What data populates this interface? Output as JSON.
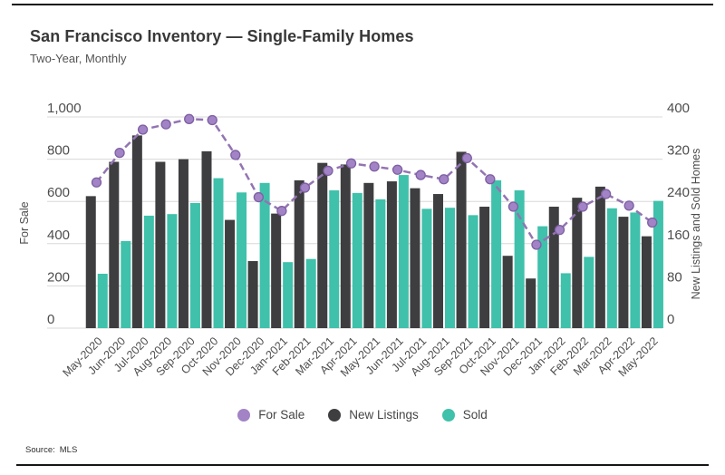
{
  "header": {
    "title": "San Francisco Inventory — Single-Family Homes",
    "subtitle": "Two-Year, Monthly"
  },
  "source": {
    "label": "Source:",
    "value": "MLS"
  },
  "legend": [
    {
      "label": "For Sale",
      "color": "#a283c5"
    },
    {
      "label": "New Listings",
      "color": "#3e3e40"
    },
    {
      "label": "Sold",
      "color": "#3fc1ab"
    }
  ],
  "chart_data": {
    "type": "bar",
    "title": "San Francisco Inventory — Single-Family Homes",
    "subtitle": "Two-Year, Monthly",
    "grid": true,
    "legend_position": "bottom",
    "categories": [
      "May-2020",
      "Jun-2020",
      "Jul-2020",
      "Aug-2020",
      "Sep-2020",
      "Oct-2020",
      "Nov-2020",
      "Dec-2020",
      "Jan-2021",
      "Feb-2021",
      "Mar-2021",
      "Apr-2021",
      "May-2021",
      "Jun-2021",
      "Jul-2021",
      "Aug-2021",
      "Sep-2021",
      "Oct-2021",
      "Nov-2021",
      "Dec-2021",
      "Jan-2022",
      "Feb-2022",
      "Mar-2022",
      "Apr-2022",
      "May-2022"
    ],
    "series": [
      {
        "name": "For Sale",
        "type": "line",
        "axis": "left",
        "color": "#9374b3",
        "marker_color": "#a283c5",
        "values": [
          690,
          830,
          940,
          965,
          990,
          985,
          820,
          620,
          555,
          665,
          745,
          780,
          765,
          750,
          725,
          705,
          805,
          705,
          575,
          395,
          465,
          575,
          635,
          580,
          500
        ]
      },
      {
        "name": "New Listings",
        "type": "bar",
        "axis": "right",
        "color": "#3e3e40",
        "values": [
          250,
          315,
          365,
          315,
          320,
          335,
          205,
          127,
          217,
          280,
          313,
          310,
          275,
          278,
          265,
          254,
          334,
          230,
          137,
          94,
          230,
          247,
          268,
          211,
          174
        ]
      },
      {
        "name": "Sold",
        "type": "bar",
        "axis": "right",
        "color": "#3fc1ab",
        "values": [
          103,
          165,
          213,
          216,
          237,
          284,
          257,
          275,
          125,
          131,
          261,
          256,
          244,
          290,
          226,
          228,
          214,
          280,
          261,
          193,
          104,
          135,
          227,
          219,
          241
        ]
      }
    ],
    "left_axis": {
      "label": "For Sale",
      "min": 0,
      "max": 1000,
      "ticks": [
        "0",
        "200",
        "400",
        "600",
        "800",
        "1,000"
      ]
    },
    "right_axis": {
      "label": "New Listings and Sold Homes",
      "min": 0,
      "max": 400,
      "ticks": [
        "0",
        "80",
        "160",
        "240",
        "320",
        "400"
      ]
    }
  }
}
